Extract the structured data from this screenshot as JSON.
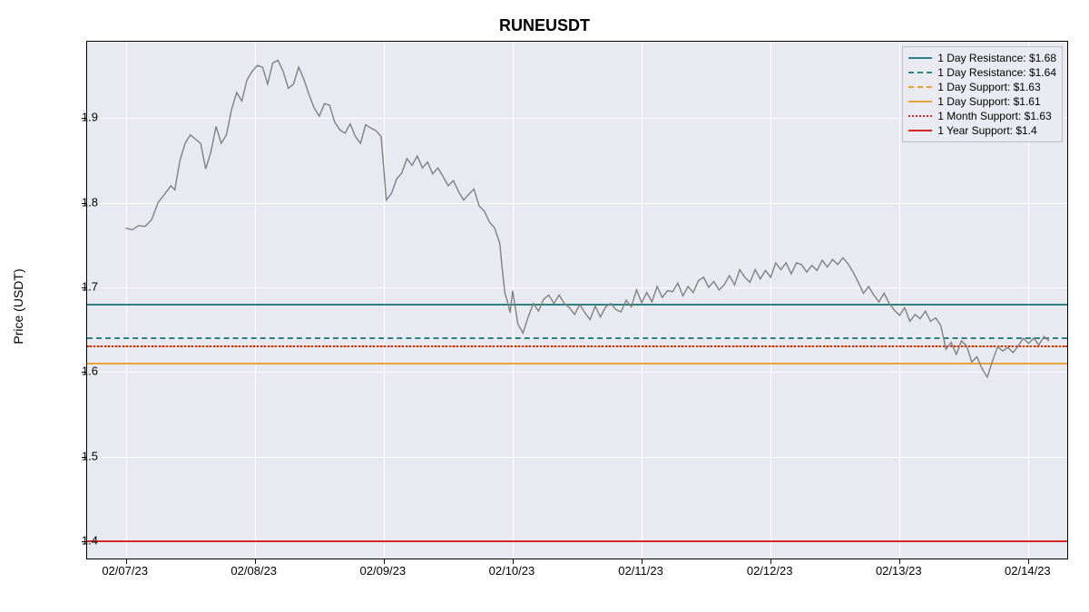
{
  "chart": {
    "type": "line",
    "title": "RUNEUSDT",
    "ylabel": "Price (USDT)",
    "title_fontsize": 18,
    "label_fontsize": 14,
    "tick_fontsize": 13,
    "background_color": "#ffffff",
    "plot_background_color": "#e9e9f1",
    "grid_color": "#ffffff",
    "line_color": "#808080",
    "line_width": 1.4,
    "ylim": [
      1.38,
      1.99
    ],
    "yticks": [
      1.4,
      1.5,
      1.6,
      1.7,
      1.8,
      1.9
    ],
    "ytick_labels": [
      "1.4",
      "1.5",
      "1.6",
      "1.7",
      "1.8",
      "1.9"
    ],
    "xticks": [
      0,
      1,
      2,
      3,
      4,
      5,
      6,
      7
    ],
    "xtick_labels": [
      "02/07/23",
      "02/08/23",
      "02/09/23",
      "02/10/23",
      "02/11/23",
      "02/12/23",
      "02/13/23",
      "02/14/23"
    ],
    "xlim": [
      -0.3,
      7.3
    ],
    "horizontal_lines": [
      {
        "value": 1.68,
        "color": "#2b8080",
        "style": "solid",
        "label": "1 Day Resistance: $1.68"
      },
      {
        "value": 1.64,
        "color": "#2b8080",
        "style": "dashed",
        "label": "1 Day Resistance: $1.64"
      },
      {
        "value": 1.63,
        "color": "#e8a23a",
        "style": "dashed",
        "label": "1 Day Support: $1.63"
      },
      {
        "value": 1.61,
        "color": "#e8a23a",
        "style": "solid",
        "label": "1 Day Support: $1.61"
      },
      {
        "value": 1.63,
        "color": "#d62728",
        "style": "dotted",
        "label": "1 Month Support: $1.63"
      },
      {
        "value": 1.4,
        "color": "#d62728",
        "style": "solid",
        "label": "1 Year Support: $1.4"
      }
    ],
    "series": [
      [
        0.0,
        1.77
      ],
      [
        0.05,
        1.768
      ],
      [
        0.1,
        1.773
      ],
      [
        0.15,
        1.772
      ],
      [
        0.2,
        1.78
      ],
      [
        0.25,
        1.8
      ],
      [
        0.3,
        1.81
      ],
      [
        0.35,
        1.82
      ],
      [
        0.38,
        1.815
      ],
      [
        0.42,
        1.85
      ],
      [
        0.46,
        1.87
      ],
      [
        0.5,
        1.88
      ],
      [
        0.54,
        1.875
      ],
      [
        0.58,
        1.87
      ],
      [
        0.62,
        1.84
      ],
      [
        0.66,
        1.86
      ],
      [
        0.7,
        1.89
      ],
      [
        0.74,
        1.87
      ],
      [
        0.78,
        1.88
      ],
      [
        0.82,
        1.91
      ],
      [
        0.86,
        1.93
      ],
      [
        0.9,
        1.92
      ],
      [
        0.94,
        1.945
      ],
      [
        0.98,
        1.955
      ],
      [
        1.02,
        1.962
      ],
      [
        1.06,
        1.96
      ],
      [
        1.1,
        1.94
      ],
      [
        1.14,
        1.965
      ],
      [
        1.18,
        1.968
      ],
      [
        1.22,
        1.955
      ],
      [
        1.26,
        1.935
      ],
      [
        1.3,
        1.94
      ],
      [
        1.34,
        1.96
      ],
      [
        1.38,
        1.946
      ],
      [
        1.42,
        1.928
      ],
      [
        1.46,
        1.912
      ],
      [
        1.5,
        1.902
      ],
      [
        1.54,
        1.917
      ],
      [
        1.58,
        1.915
      ],
      [
        1.62,
        1.895
      ],
      [
        1.66,
        1.886
      ],
      [
        1.7,
        1.882
      ],
      [
        1.74,
        1.893
      ],
      [
        1.78,
        1.878
      ],
      [
        1.82,
        1.87
      ],
      [
        1.86,
        1.892
      ],
      [
        1.9,
        1.888
      ],
      [
        1.94,
        1.885
      ],
      [
        1.98,
        1.878
      ],
      [
        2.02,
        1.803
      ],
      [
        2.06,
        1.811
      ],
      [
        2.1,
        1.828
      ],
      [
        2.14,
        1.835
      ],
      [
        2.18,
        1.852
      ],
      [
        2.22,
        1.844
      ],
      [
        2.26,
        1.855
      ],
      [
        2.3,
        1.841
      ],
      [
        2.34,
        1.848
      ],
      [
        2.38,
        1.834
      ],
      [
        2.42,
        1.841
      ],
      [
        2.46,
        1.831
      ],
      [
        2.5,
        1.82
      ],
      [
        2.54,
        1.826
      ],
      [
        2.58,
        1.813
      ],
      [
        2.62,
        1.803
      ],
      [
        2.66,
        1.81
      ],
      [
        2.7,
        1.816
      ],
      [
        2.74,
        1.796
      ],
      [
        2.78,
        1.79
      ],
      [
        2.82,
        1.777
      ],
      [
        2.86,
        1.77
      ],
      [
        2.9,
        1.752
      ],
      [
        2.92,
        1.72
      ],
      [
        2.94,
        1.693
      ],
      [
        2.96,
        1.683
      ],
      [
        2.98,
        1.67
      ],
      [
        3.0,
        1.696
      ],
      [
        3.04,
        1.657
      ],
      [
        3.08,
        1.646
      ],
      [
        3.12,
        1.665
      ],
      [
        3.16,
        1.681
      ],
      [
        3.2,
        1.672
      ],
      [
        3.24,
        1.686
      ],
      [
        3.28,
        1.691
      ],
      [
        3.32,
        1.681
      ],
      [
        3.36,
        1.691
      ],
      [
        3.4,
        1.681
      ],
      [
        3.44,
        1.676
      ],
      [
        3.48,
        1.668
      ],
      [
        3.52,
        1.68
      ],
      [
        3.56,
        1.67
      ],
      [
        3.6,
        1.662
      ],
      [
        3.64,
        1.678
      ],
      [
        3.68,
        1.665
      ],
      [
        3.72,
        1.677
      ],
      [
        3.76,
        1.681
      ],
      [
        3.8,
        1.674
      ],
      [
        3.84,
        1.671
      ],
      [
        3.88,
        1.685
      ],
      [
        3.92,
        1.677
      ],
      [
        3.96,
        1.697
      ],
      [
        4.0,
        1.682
      ],
      [
        4.04,
        1.694
      ],
      [
        4.08,
        1.683
      ],
      [
        4.12,
        1.701
      ],
      [
        4.16,
        1.688
      ],
      [
        4.2,
        1.696
      ],
      [
        4.24,
        1.695
      ],
      [
        4.28,
        1.705
      ],
      [
        4.32,
        1.69
      ],
      [
        4.36,
        1.701
      ],
      [
        4.4,
        1.694
      ],
      [
        4.44,
        1.708
      ],
      [
        4.48,
        1.712
      ],
      [
        4.52,
        1.7
      ],
      [
        4.56,
        1.707
      ],
      [
        4.6,
        1.697
      ],
      [
        4.64,
        1.703
      ],
      [
        4.68,
        1.714
      ],
      [
        4.72,
        1.703
      ],
      [
        4.76,
        1.721
      ],
      [
        4.8,
        1.712
      ],
      [
        4.84,
        1.706
      ],
      [
        4.88,
        1.721
      ],
      [
        4.92,
        1.71
      ],
      [
        4.96,
        1.72
      ],
      [
        5.0,
        1.712
      ],
      [
        5.04,
        1.729
      ],
      [
        5.08,
        1.721
      ],
      [
        5.12,
        1.729
      ],
      [
        5.16,
        1.716
      ],
      [
        5.2,
        1.729
      ],
      [
        5.24,
        1.727
      ],
      [
        5.28,
        1.718
      ],
      [
        5.32,
        1.726
      ],
      [
        5.36,
        1.72
      ],
      [
        5.4,
        1.732
      ],
      [
        5.44,
        1.724
      ],
      [
        5.48,
        1.733
      ],
      [
        5.52,
        1.727
      ],
      [
        5.56,
        1.735
      ],
      [
        5.6,
        1.728
      ],
      [
        5.64,
        1.718
      ],
      [
        5.68,
        1.706
      ],
      [
        5.72,
        1.693
      ],
      [
        5.76,
        1.701
      ],
      [
        5.8,
        1.691
      ],
      [
        5.84,
        1.683
      ],
      [
        5.88,
        1.693
      ],
      [
        5.92,
        1.681
      ],
      [
        5.96,
        1.673
      ],
      [
        6.0,
        1.667
      ],
      [
        6.04,
        1.676
      ],
      [
        6.08,
        1.66
      ],
      [
        6.12,
        1.668
      ],
      [
        6.16,
        1.663
      ],
      [
        6.2,
        1.672
      ],
      [
        6.24,
        1.66
      ],
      [
        6.28,
        1.664
      ],
      [
        6.32,
        1.655
      ],
      [
        6.36,
        1.627
      ],
      [
        6.4,
        1.635
      ],
      [
        6.44,
        1.621
      ],
      [
        6.48,
        1.637
      ],
      [
        6.52,
        1.631
      ],
      [
        6.56,
        1.612
      ],
      [
        6.6,
        1.618
      ],
      [
        6.64,
        1.604
      ],
      [
        6.68,
        1.594
      ],
      [
        6.72,
        1.613
      ],
      [
        6.76,
        1.63
      ],
      [
        6.8,
        1.625
      ],
      [
        6.84,
        1.629
      ],
      [
        6.88,
        1.623
      ],
      [
        6.92,
        1.631
      ],
      [
        6.96,
        1.64
      ],
      [
        7.0,
        1.634
      ],
      [
        7.04,
        1.64
      ],
      [
        7.08,
        1.632
      ],
      [
        7.12,
        1.642
      ],
      [
        7.16,
        1.637
      ]
    ]
  }
}
